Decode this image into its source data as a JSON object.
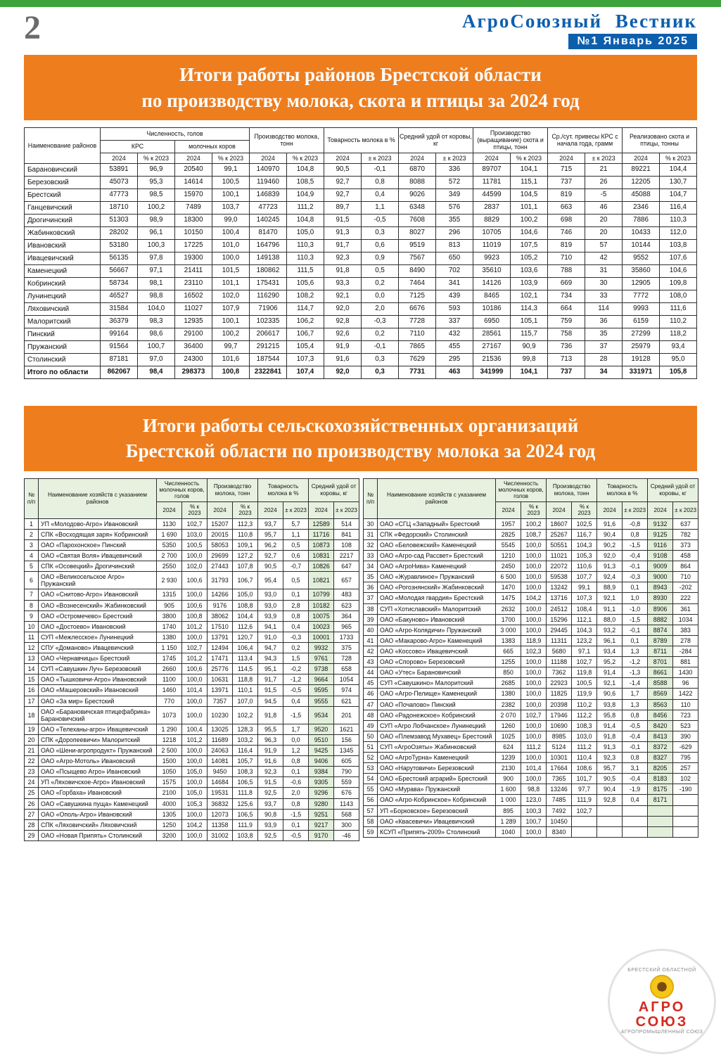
{
  "page": {
    "number": "2",
    "masthead": "АгроСоюзный  Вестник",
    "issue": "№1 Январь 2025"
  },
  "table1": {
    "title_line1": "Итоги работы районов Брестской области",
    "title_line2": "по производству молока, скота и птицы за 2024 год",
    "headers": {
      "name": "Наименование районов",
      "livestock": "Численность, голов",
      "krs": "КРС",
      "cows": "молочных коров",
      "milk": "Производство молока, тонн",
      "marketability": "Товарность молока в %",
      "yield": "Средний удой от коровы, кг",
      "meat": "Производство (выращивание) скота и птицы, тонн",
      "gain": "Ср./сут. привесы КРС с начала года, грамм",
      "sold": "Реализовано скота и птицы, тонны",
      "y2024": "2024",
      "pct": "% к 2023",
      "pm": "± к 2023"
    },
    "rows": [
      [
        "Барановичский",
        "53891",
        "96,9",
        "20540",
        "99,1",
        "140970",
        "104,8",
        "90,5",
        "-0,1",
        "6870",
        "336",
        "89707",
        "104,1",
        "715",
        "21",
        "89221",
        "104,4"
      ],
      [
        "Березовский",
        "45073",
        "95,3",
        "14614",
        "100,5",
        "119460",
        "108,5",
        "92,7",
        "0,8",
        "8088",
        "572",
        "11781",
        "115,1",
        "737",
        "26",
        "12205",
        "130,7"
      ],
      [
        "Брестский",
        "47773",
        "98,5",
        "15970",
        "100,1",
        "146839",
        "104,9",
        "92,7",
        "0,4",
        "9026",
        "349",
        "44599",
        "104,5",
        "819",
        "-5",
        "45088",
        "104,7"
      ],
      [
        "Ганцевичский",
        "18710",
        "100,2",
        "7489",
        "103,7",
        "47723",
        "111,2",
        "89,7",
        "1,1",
        "6348",
        "576",
        "2837",
        "101,1",
        "663",
        "46",
        "2346",
        "116,4"
      ],
      [
        "Дрогичинский",
        "51303",
        "98,9",
        "18300",
        "99,0",
        "140245",
        "104,8",
        "91,5",
        "-0,5",
        "7608",
        "355",
        "8829",
        "100,2",
        "698",
        "20",
        "7886",
        "110,3"
      ],
      [
        "Жабинковский",
        "28202",
        "96,1",
        "10150",
        "100,4",
        "81470",
        "105,0",
        "91,3",
        "0,3",
        "8027",
        "296",
        "10705",
        "104,6",
        "746",
        "20",
        "10433",
        "112,0"
      ],
      [
        "Ивановский",
        "53180",
        "100,3",
        "17225",
        "101,0",
        "164796",
        "110,3",
        "91,7",
        "0,6",
        "9519",
        "813",
        "11019",
        "107,5",
        "819",
        "57",
        "10144",
        "103,8"
      ],
      [
        "Ивацевичский",
        "56135",
        "97,8",
        "19300",
        "100,0",
        "149138",
        "110,3",
        "92,3",
        "0,9",
        "7567",
        "650",
        "9923",
        "105,2",
        "710",
        "42",
        "9552",
        "107,6"
      ],
      [
        "Каменецкий",
        "56667",
        "97,1",
        "21411",
        "101,5",
        "180862",
        "111,5",
        "91,8",
        "0,5",
        "8490",
        "702",
        "35610",
        "103,6",
        "788",
        "31",
        "35860",
        "104,6"
      ],
      [
        "Кобринский",
        "58734",
        "98,1",
        "23110",
        "101,1",
        "175431",
        "105,6",
        "93,3",
        "0,2",
        "7464",
        "341",
        "14126",
        "103,9",
        "669",
        "30",
        "12905",
        "109,8"
      ],
      [
        "Лунинецкий",
        "46527",
        "98,8",
        "16502",
        "102,0",
        "116290",
        "108,2",
        "92,1",
        "0,0",
        "7125",
        "439",
        "8465",
        "102,1",
        "734",
        "33",
        "7772",
        "108,0"
      ],
      [
        "Ляховичский",
        "31584",
        "104,0",
        "11027",
        "107,9",
        "71906",
        "114,7",
        "92,0",
        "2,0",
        "6676",
        "593",
        "10186",
        "114,3",
        "664",
        "114",
        "9993",
        "111,6"
      ],
      [
        "Малоритский",
        "36379",
        "98,3",
        "12935",
        "100,1",
        "102335",
        "106,2",
        "92,8",
        "-0,3",
        "7728",
        "337",
        "6950",
        "105,1",
        "759",
        "36",
        "6159",
        "110,2"
      ],
      [
        "Пинский",
        "99164",
        "98,6",
        "29100",
        "100,2",
        "206617",
        "106,7",
        "92,6",
        "0,2",
        "7110",
        "432",
        "28561",
        "115,7",
        "758",
        "35",
        "27299",
        "118,2"
      ],
      [
        "Пружанский",
        "91564",
        "100,7",
        "36400",
        "99,7",
        "291215",
        "105,4",
        "91,9",
        "-0,1",
        "7865",
        "455",
        "27167",
        "90,9",
        "736",
        "37",
        "25979",
        "93,4"
      ],
      [
        "Столинский",
        "87181",
        "97,0",
        "24300",
        "101,6",
        "187544",
        "107,3",
        "91,6",
        "0,3",
        "7629",
        "295",
        "21536",
        "99,8",
        "713",
        "28",
        "19128",
        "95,0"
      ]
    ],
    "total": [
      "Итого по области",
      "862067",
      "98,4",
      "298373",
      "100,8",
      "2322841",
      "107,4",
      "92,0",
      "0,3",
      "7731",
      "463",
      "341999",
      "104,1",
      "737",
      "34",
      "331971",
      "105,8"
    ]
  },
  "table2": {
    "title_line1": "Итоги работы сельскохозяйственных организаций",
    "title_line2": "Брестской области по производству молока за 2024 год",
    "headers": {
      "num": "№ п/п",
      "name": "Наименование хозяйств с указанием районов",
      "cows": "Численность молочных коров, голов",
      "milk": "Производство молока, тонн",
      "market": "Товарность молока в %",
      "yield": "Средний удой от коровы, кг",
      "y2024": "2024",
      "pct": "% к 2023",
      "pm": "± к 2023"
    },
    "left_rows": [
      [
        "1",
        "УП «Молодово-Агро» Ивановский",
        "1130",
        "102,7",
        "15207",
        "112,3",
        "93,7",
        "5,7",
        "12589",
        "514"
      ],
      [
        "2",
        "СПК «Восходящая заря» Кобринский",
        "1 690",
        "103,0",
        "20015",
        "110,8",
        "95,7",
        "1,1",
        "11716",
        "841"
      ],
      [
        "3",
        "ОАО «Парохонское» Пинский",
        "5350",
        "100,5",
        "58053",
        "109,1",
        "96,2",
        "0,5",
        "10873",
        "108"
      ],
      [
        "4",
        "ОАО «Святая Воля» Ивацевичский",
        "2 700",
        "100,0",
        "29699",
        "127,2",
        "92,7",
        "0,6",
        "10831",
        "2217"
      ],
      [
        "5",
        "СПК «Осовецкий» Дрогичинский",
        "2550",
        "102,0",
        "27443",
        "107,8",
        "90,5",
        "-0,7",
        "10826",
        "647"
      ],
      [
        "6",
        "ОАО «Великосельское Агро» Пружанский",
        "2 930",
        "100,6",
        "31793",
        "106,7",
        "95,4",
        "0,5",
        "10821",
        "657"
      ],
      [
        "7",
        "ОАО «Снитово-Агро» Ивановский",
        "1315",
        "100,0",
        "14266",
        "105,0",
        "93,0",
        "0,1",
        "10799",
        "483"
      ],
      [
        "8",
        "ОАО «Вознесенский» Жабинковский",
        "905",
        "100,6",
        "9176",
        "108,8",
        "93,0",
        "2,8",
        "10182",
        "623"
      ],
      [
        "9",
        "ОАО «Остромечево» Брестский",
        "3800",
        "100,8",
        "38062",
        "104,4",
        "93,9",
        "0,8",
        "10075",
        "364"
      ],
      [
        "10",
        "ОАО «Достоево» Ивановский",
        "1740",
        "101,2",
        "17510",
        "112,6",
        "94,1",
        "0,4",
        "10023",
        "965"
      ],
      [
        "11",
        "СУП «Межлесское» Лунинецкий",
        "1380",
        "100,0",
        "13791",
        "120,7",
        "91,0",
        "-0,3",
        "10001",
        "1733"
      ],
      [
        "12",
        "СПУ «Доманово» Ивацевичский",
        "1 150",
        "102,7",
        "12494",
        "106,4",
        "94,7",
        "0,2",
        "9932",
        "375"
      ],
      [
        "13",
        "ОАО «Чернавчицы» Брестский",
        "1745",
        "101,2",
        "17471",
        "113,4",
        "94,3",
        "1,5",
        "9761",
        "728"
      ],
      [
        "14",
        "СУП «Савушкин Луч» Березовский",
        "2660",
        "100,6",
        "25776",
        "114,5",
        "95,1",
        "-0,2",
        "9738",
        "658"
      ],
      [
        "15",
        "ОАО «Тышковичи-Агро» Ивановский",
        "1100",
        "100,0",
        "10631",
        "118,8",
        "91,7",
        "-1,2",
        "9664",
        "1054"
      ],
      [
        "16",
        "ОАО «Машеровский» Ивановский",
        "1460",
        "101,4",
        "13971",
        "110,1",
        "91,5",
        "-0,5",
        "9595",
        "974"
      ],
      [
        "17",
        "ОАО «За мир» Брестский",
        "770",
        "100,0",
        "7357",
        "107,0",
        "94,5",
        "0,4",
        "9555",
        "621"
      ],
      [
        "18",
        "ОАО «Барановичская птицефабрика» Барановичский",
        "1073",
        "100,0",
        "10230",
        "102,2",
        "91,8",
        "-1,5",
        "9534",
        "201"
      ],
      [
        "19",
        "ОАО «Телеханы-агро» Ивацевичский",
        "1 290",
        "100,4",
        "13025",
        "128,3",
        "95,5",
        "1,7",
        "9520",
        "1621"
      ],
      [
        "20",
        "СПК «Доропеевичи» Малоритский",
        "1218",
        "101,2",
        "11689",
        "103,2",
        "96,3",
        "0,0",
        "9510",
        "156"
      ],
      [
        "21",
        "ОАО «Шени-агропродукт» Пружанский",
        "2 500",
        "100,0",
        "24063",
        "116,4",
        "91,9",
        "1,2",
        "9425",
        "1345"
      ],
      [
        "22",
        "ОАО «Агро-Мотоль» Ивановский",
        "1500",
        "100,0",
        "14081",
        "105,7",
        "91,6",
        "0,8",
        "9406",
        "605"
      ],
      [
        "23",
        "ОАО «Псыщево Агро» Ивановский",
        "1050",
        "105,0",
        "9450",
        "108,3",
        "92,3",
        "0,1",
        "9384",
        "790"
      ],
      [
        "24",
        "УП «Ляховичское-Агро» Ивановский",
        "1575",
        "100,0",
        "14684",
        "106,5",
        "91,5",
        "-0,6",
        "9305",
        "559"
      ],
      [
        "25",
        "ОАО «Горбаха» Ивановский",
        "2100",
        "105,0",
        "19531",
        "111,8",
        "92,5",
        "2,0",
        "9296",
        "676"
      ],
      [
        "26",
        "ОАО «Савушкина пуща» Каменецкий",
        "4000",
        "105,3",
        "36832",
        "125,6",
        "93,7",
        "0,8",
        "9280",
        "1143"
      ],
      [
        "27",
        "ОАО «Ополь-Агро» Ивановский",
        "1305",
        "100,0",
        "12073",
        "106,5",
        "90,8",
        "-1,5",
        "9251",
        "568"
      ],
      [
        "28",
        "СПК «Ляховичский» Ляховичский",
        "1250",
        "104,2",
        "11358",
        "111,9",
        "93,9",
        "0,1",
        "9217",
        "300"
      ],
      [
        "29",
        "ОАО «Новая Припять» Столинский",
        "3200",
        "100,0",
        "31002",
        "103,8",
        "92,5",
        "-0,5",
        "9170",
        "-46"
      ]
    ],
    "right_rows": [
      [
        "30",
        "ОАО «СГЦ «Западный» Брестский",
        "1957",
        "100,2",
        "18607",
        "102,5",
        "91,6",
        "-0,8",
        "9132",
        "637"
      ],
      [
        "31",
        "СПК «Федорский» Столинский",
        "2825",
        "108,7",
        "25267",
        "116,7",
        "90,4",
        "0,8",
        "9125",
        "782"
      ],
      [
        "32",
        "ОАО «Беловежский» Каменецкий",
        "5545",
        "100,0",
        "50551",
        "104,3",
        "90,2",
        "-1,5",
        "9116",
        "373"
      ],
      [
        "33",
        "ОАО «Агро-сад Рассвет» Брестский",
        "1210",
        "100,0",
        "11021",
        "105,3",
        "92,0",
        "-0,4",
        "9108",
        "458"
      ],
      [
        "34",
        "ОАО «АгроНива» Каменецкий",
        "2450",
        "100,0",
        "22072",
        "110,6",
        "91,3",
        "-0,1",
        "9009",
        "864"
      ],
      [
        "35",
        "ОАО «Журавлиное» Пружанский",
        "6 500",
        "100,0",
        "59538",
        "107,7",
        "92,4",
        "-0,3",
        "9000",
        "710"
      ],
      [
        "36",
        "ОАО «Рогознянский» Жабинковский",
        "1470",
        "100,0",
        "13242",
        "99,1",
        "88,9",
        "0,1",
        "8943",
        "-202"
      ],
      [
        "37",
        "ОАО «Молодая гвардия» Брестский",
        "1475",
        "104,2",
        "13716",
        "107,3",
        "92,1",
        "1,0",
        "8930",
        "222"
      ],
      [
        "38",
        "СУП «Хотиславский» Малоритский",
        "2632",
        "100,0",
        "24512",
        "108,4",
        "91,1",
        "-1,0",
        "8906",
        "361"
      ],
      [
        "39",
        "ОАО «Бакуново» Ивановский",
        "1700",
        "100,0",
        "15296",
        "112,1",
        "88,0",
        "-1,5",
        "8882",
        "1034"
      ],
      [
        "40",
        "ОАО «Агро-Колядичи» Пружанский",
        "3 000",
        "100,0",
        "29445",
        "104,3",
        "93,2",
        "-0,1",
        "8874",
        "383"
      ],
      [
        "41",
        "ОАО «Макарово-Агро» Каменецкий",
        "1383",
        "118,9",
        "11311",
        "123,2",
        "96,1",
        "0,1",
        "8789",
        "278"
      ],
      [
        "42",
        "ОАО «Коссово» Ивацевичский",
        "665",
        "102,3",
        "5680",
        "97,1",
        "93,4",
        "1,3",
        "8711",
        "-284"
      ],
      [
        "43",
        "ОАО «Спорово» Березовский",
        "1255",
        "100,0",
        "11188",
        "102,7",
        "95,2",
        "-1,2",
        "8701",
        "881"
      ],
      [
        "44",
        "ОАО «Утес» Барановичский",
        "850",
        "100,0",
        "7362",
        "119,8",
        "91,4",
        "-1,3",
        "8661",
        "1430"
      ],
      [
        "45",
        "СУП «Савушкино» Малоритский",
        "2685",
        "100,0",
        "22923",
        "100,5",
        "92,1",
        "-1,4",
        "8588",
        "96"
      ],
      [
        "46",
        "ОАО «Агро-Пелище» Каменецкий",
        "1380",
        "100,0",
        "11825",
        "119,9",
        "90,6",
        "1,7",
        "8569",
        "1422"
      ],
      [
        "47",
        "ОАО «Почапово» Пинский",
        "2382",
        "100,0",
        "20398",
        "110,2",
        "93,8",
        "1,3",
        "8563",
        "110"
      ],
      [
        "48",
        "ОАО «Радонежское» Кобринский",
        "2 070",
        "102,7",
        "17946",
        "112,2",
        "95,8",
        "0,8",
        "8456",
        "723"
      ],
      [
        "49",
        "СУП «Агро Лобчанское» Лунинецкий",
        "1260",
        "100,0",
        "10690",
        "108,3",
        "91,4",
        "-0,5",
        "8420",
        "523"
      ],
      [
        "50",
        "ОАО «Племзавод Мухавец» Брестский",
        "1025",
        "100,0",
        "8985",
        "103,0",
        "91,8",
        "-0,4",
        "8413",
        "390"
      ],
      [
        "51",
        "СУП «АгроОзяты» Жабинковский",
        "624",
        "111,2",
        "5124",
        "111,2",
        "91,3",
        "-0,1",
        "8372",
        "-629"
      ],
      [
        "52",
        "ОАО «АгроТурна» Каменецкий",
        "1239",
        "100,0",
        "10301",
        "110,4",
        "92,3",
        "0,8",
        "8327",
        "795"
      ],
      [
        "53",
        "ОАО «Нарутовичи» Березовский",
        "2130",
        "101,4",
        "17664",
        "108,6",
        "95,7",
        "3,1",
        "8205",
        "257"
      ],
      [
        "54",
        "ОАО «Брестский аграрий» Брестский",
        "900",
        "100,0",
        "7365",
        "101,7",
        "90,5",
        "-0,4",
        "8183",
        "102"
      ],
      [
        "55",
        "ОАО «Мурава» Пружанский",
        "1 600",
        "98,8",
        "13246",
        "97,7",
        "90,4",
        "-1,9",
        "8175",
        "-190"
      ],
      [
        "56",
        "ОАО «Агро-Кобринское» Кобринский",
        "1 000",
        "123,0",
        "7485",
        "111,9",
        "92,8",
        "0,4",
        "8171",
        ""
      ],
      [
        "57",
        "УП «Борковское» Березовский",
        "895",
        "100,3",
        "7492",
        "102,7",
        "",
        "",
        "",
        ""
      ],
      [
        "58",
        "ОАО «Квасевичи» Ивацевичский",
        "1 289",
        "100,7",
        "10450",
        "",
        "",
        "",
        "",
        ""
      ],
      [
        "59",
        "КСУП «Припять-2009» Столинский",
        "1040",
        "100,0",
        "8340",
        "",
        "",
        "",
        "",
        ""
      ]
    ]
  },
  "logo": {
    "arc_top": "БРЕСТСКИЙ ОБЛАСТНОЙ",
    "word1": "АГРО",
    "word2": "СОЮЗ",
    "arc_bottom": "АГРОПРОМЫШЛЕННЫЙ СОЮЗ"
  }
}
